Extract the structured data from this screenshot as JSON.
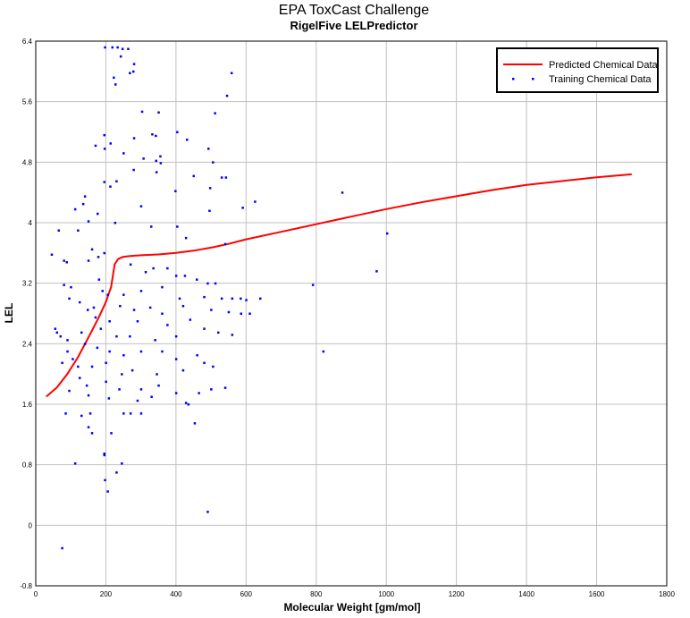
{
  "chart_data": {
    "type": "scatter",
    "title": "EPA ToxCast Challenge",
    "subtitle": "RigelFive LELPredictor",
    "xlabel": "Molecular Weight [gm/mol]",
    "ylabel": "LEL",
    "xlim": [
      0,
      1800
    ],
    "ylim": [
      -0.8,
      6.4
    ],
    "xticks": [
      "0",
      "200",
      "400",
      "600",
      "800",
      "1000",
      "1200",
      "1400",
      "1600",
      "1800"
    ],
    "yticks": [
      "-0.8",
      "0",
      "0.8",
      "1.6",
      "2.4",
      "3.2",
      "4",
      "4.8",
      "5.6",
      "6.4"
    ],
    "grid": true,
    "legend_position": "top-right",
    "colors": {
      "predicted": "#ff0000",
      "training": "#0000ff"
    },
    "series": [
      {
        "name": "Predicted Chemical Data",
        "type": "line",
        "x": [
          30,
          60,
          90,
          120,
          150,
          180,
          200,
          215,
          225,
          235,
          250,
          270,
          300,
          350,
          400,
          450,
          500,
          550,
          600,
          700,
          800,
          900,
          1000,
          1100,
          1200,
          1300,
          1400,
          1500,
          1600,
          1700
        ],
        "y": [
          1.7,
          1.82,
          2.0,
          2.22,
          2.48,
          2.75,
          2.95,
          3.15,
          3.45,
          3.52,
          3.55,
          3.56,
          3.57,
          3.58,
          3.6,
          3.63,
          3.67,
          3.72,
          3.78,
          3.88,
          3.98,
          4.08,
          4.18,
          4.27,
          4.35,
          4.43,
          4.5,
          4.55,
          4.6,
          4.64
        ]
      },
      {
        "name": "Training Chemical Data",
        "type": "scatter",
        "points": [
          [
            197,
            6.32
          ],
          [
            218,
            6.32
          ],
          [
            233,
            6.32
          ],
          [
            247,
            6.3
          ],
          [
            263,
            6.3
          ],
          [
            242,
            6.2
          ],
          [
            280,
            6.1
          ],
          [
            278,
            6.0
          ],
          [
            268,
            5.98
          ],
          [
            222,
            5.92
          ],
          [
            558,
            5.98
          ],
          [
            227,
            5.83
          ],
          [
            545,
            5.68
          ],
          [
            303,
            5.47
          ],
          [
            350,
            5.46
          ],
          [
            511,
            5.45
          ],
          [
            403,
            5.2
          ],
          [
            195,
            5.16
          ],
          [
            170,
            5.02
          ],
          [
            213,
            5.05
          ],
          [
            196,
            4.98
          ],
          [
            332,
            5.17
          ],
          [
            342,
            5.15
          ],
          [
            280,
            5.12
          ],
          [
            431,
            5.1
          ],
          [
            492,
            4.98
          ],
          [
            250,
            4.92
          ],
          [
            355,
            4.88
          ],
          [
            307,
            4.85
          ],
          [
            343,
            4.82
          ],
          [
            505,
            4.8
          ],
          [
            279,
            4.7
          ],
          [
            344,
            4.67
          ],
          [
            356,
            4.79
          ],
          [
            450,
            4.62
          ],
          [
            530,
            4.6
          ],
          [
            542,
            4.6
          ],
          [
            195,
            4.54
          ],
          [
            230,
            4.55
          ],
          [
            212,
            4.48
          ],
          [
            497,
            4.46
          ],
          [
            398,
            4.42
          ],
          [
            874,
            4.4
          ],
          [
            140,
            4.35
          ],
          [
            135,
            4.25
          ],
          [
            300,
            4.22
          ],
          [
            590,
            4.2
          ],
          [
            625,
            4.28
          ],
          [
            495,
            4.16
          ],
          [
            112,
            4.18
          ],
          [
            176,
            4.12
          ],
          [
            150,
            4.02
          ],
          [
            226,
            4.0
          ],
          [
            329,
            3.95
          ],
          [
            403,
            3.95
          ],
          [
            120,
            3.9
          ],
          [
            65,
            3.9
          ],
          [
            1002,
            3.86
          ],
          [
            428,
            3.8
          ],
          [
            540,
            3.72
          ],
          [
            195,
            3.6
          ],
          [
            160,
            3.65
          ],
          [
            45,
            3.58
          ],
          [
            80,
            3.5
          ],
          [
            88,
            3.48
          ],
          [
            150,
            3.5
          ],
          [
            178,
            3.55
          ],
          [
            270,
            3.45
          ],
          [
            313,
            3.35
          ],
          [
            335,
            3.4
          ],
          [
            375,
            3.4
          ],
          [
            400,
            3.3
          ],
          [
            425,
            3.3
          ],
          [
            459,
            3.25
          ],
          [
            490,
            3.2
          ],
          [
            512,
            3.2
          ],
          [
            972,
            3.36
          ],
          [
            790,
            3.18
          ],
          [
            80,
            3.18
          ],
          [
            100,
            3.15
          ],
          [
            180,
            3.25
          ],
          [
            190,
            3.1
          ],
          [
            205,
            3.05
          ],
          [
            250,
            3.05
          ],
          [
            300,
            3.1
          ],
          [
            360,
            3.15
          ],
          [
            410,
            3.0
          ],
          [
            480,
            3.02
          ],
          [
            530,
            3.0
          ],
          [
            560,
            3.0
          ],
          [
            584,
            3.0
          ],
          [
            600,
            2.98
          ],
          [
            640,
            3.0
          ],
          [
            95,
            3.0
          ],
          [
            125,
            2.95
          ],
          [
            148,
            2.85
          ],
          [
            165,
            2.88
          ],
          [
            240,
            2.9
          ],
          [
            280,
            2.85
          ],
          [
            326,
            2.88
          ],
          [
            360,
            2.8
          ],
          [
            420,
            2.9
          ],
          [
            500,
            2.85
          ],
          [
            550,
            2.82
          ],
          [
            585,
            2.8
          ],
          [
            610,
            2.8
          ],
          [
            170,
            2.75
          ],
          [
            210,
            2.7
          ],
          [
            290,
            2.7
          ],
          [
            375,
            2.65
          ],
          [
            440,
            2.72
          ],
          [
            55,
            2.6
          ],
          [
            60,
            2.55
          ],
          [
            70,
            2.5
          ],
          [
            90,
            2.45
          ],
          [
            130,
            2.55
          ],
          [
            185,
            2.6
          ],
          [
            230,
            2.5
          ],
          [
            268,
            2.5
          ],
          [
            340,
            2.45
          ],
          [
            400,
            2.5
          ],
          [
            480,
            2.6
          ],
          [
            520,
            2.55
          ],
          [
            560,
            2.52
          ],
          [
            90,
            2.3
          ],
          [
            140,
            2.4
          ],
          [
            175,
            2.35
          ],
          [
            210,
            2.3
          ],
          [
            250,
            2.25
          ],
          [
            300,
            2.3
          ],
          [
            360,
            2.3
          ],
          [
            400,
            2.2
          ],
          [
            460,
            2.25
          ],
          [
            480,
            2.15
          ],
          [
            820,
            2.3
          ],
          [
            75,
            2.15
          ],
          [
            105,
            2.2
          ],
          [
            120,
            2.1
          ],
          [
            160,
            2.1
          ],
          [
            200,
            2.15
          ],
          [
            245,
            2.0
          ],
          [
            275,
            2.05
          ],
          [
            345,
            2.0
          ],
          [
            420,
            2.05
          ],
          [
            505,
            2.1
          ],
          [
            125,
            1.95
          ],
          [
            145,
            1.85
          ],
          [
            200,
            1.9
          ],
          [
            238,
            1.8
          ],
          [
            300,
            1.8
          ],
          [
            350,
            1.85
          ],
          [
            400,
            1.75
          ],
          [
            465,
            1.75
          ],
          [
            500,
            1.8
          ],
          [
            540,
            1.82
          ],
          [
            95,
            1.78
          ],
          [
            150,
            1.72
          ],
          [
            208,
            1.68
          ],
          [
            290,
            1.65
          ],
          [
            330,
            1.7
          ],
          [
            428,
            1.62
          ],
          [
            435,
            1.6
          ],
          [
            85,
            1.48
          ],
          [
            130,
            1.45
          ],
          [
            155,
            1.48
          ],
          [
            250,
            1.48
          ],
          [
            270,
            1.48
          ],
          [
            300,
            1.48
          ],
          [
            150,
            1.3
          ],
          [
            160,
            1.22
          ],
          [
            215,
            1.22
          ],
          [
            453,
            1.35
          ],
          [
            195,
            0.95
          ],
          [
            195,
            0.93
          ],
          [
            112,
            0.82
          ],
          [
            245,
            0.82
          ],
          [
            230,
            0.7
          ],
          [
            197,
            0.6
          ],
          [
            205,
            0.45
          ],
          [
            490,
            0.18
          ],
          [
            75,
            -0.3
          ]
        ]
      }
    ]
  }
}
